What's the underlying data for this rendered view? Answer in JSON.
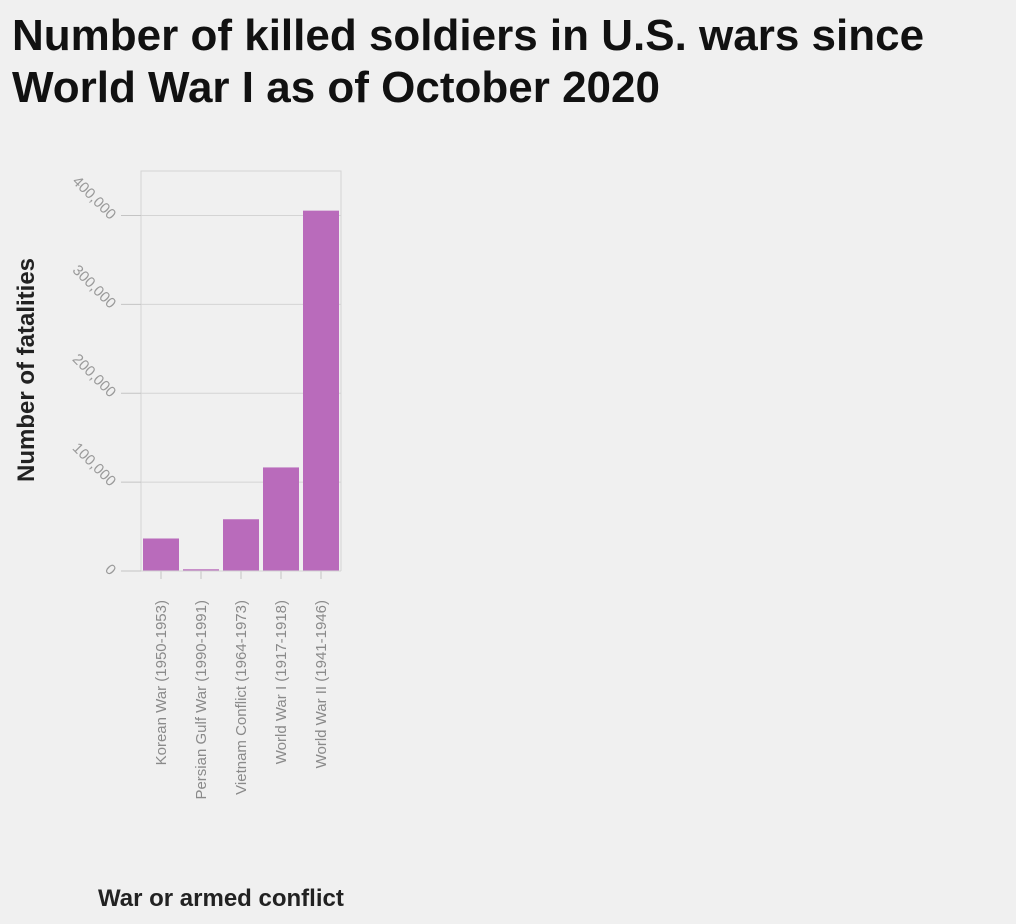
{
  "chart_data": {
    "type": "bar",
    "title_lines": [
      "Number of killed soldiers in U.S. wars since",
      "World War I as of October 2020"
    ],
    "xlabel": "War or armed conflict",
    "ylabel": "Number of fatalities",
    "categories": [
      "Korean War (1950-1953)",
      "Persian Gulf War (1990-1991)",
      "Vietnam Conflict (1964-1973)",
      "World War I (1917-1918)",
      "World War II (1941-1946)"
    ],
    "values": [
      36574,
      1948,
      58220,
      116516,
      405399
    ],
    "ylim": [
      0,
      450000
    ],
    "yticks": [
      0,
      100000,
      200000,
      300000,
      400000
    ],
    "ytick_labels": [
      "0",
      "100,000",
      "200,000",
      "300,000",
      "400,000"
    ],
    "bar_color": "#b96bbb",
    "grid": true
  }
}
